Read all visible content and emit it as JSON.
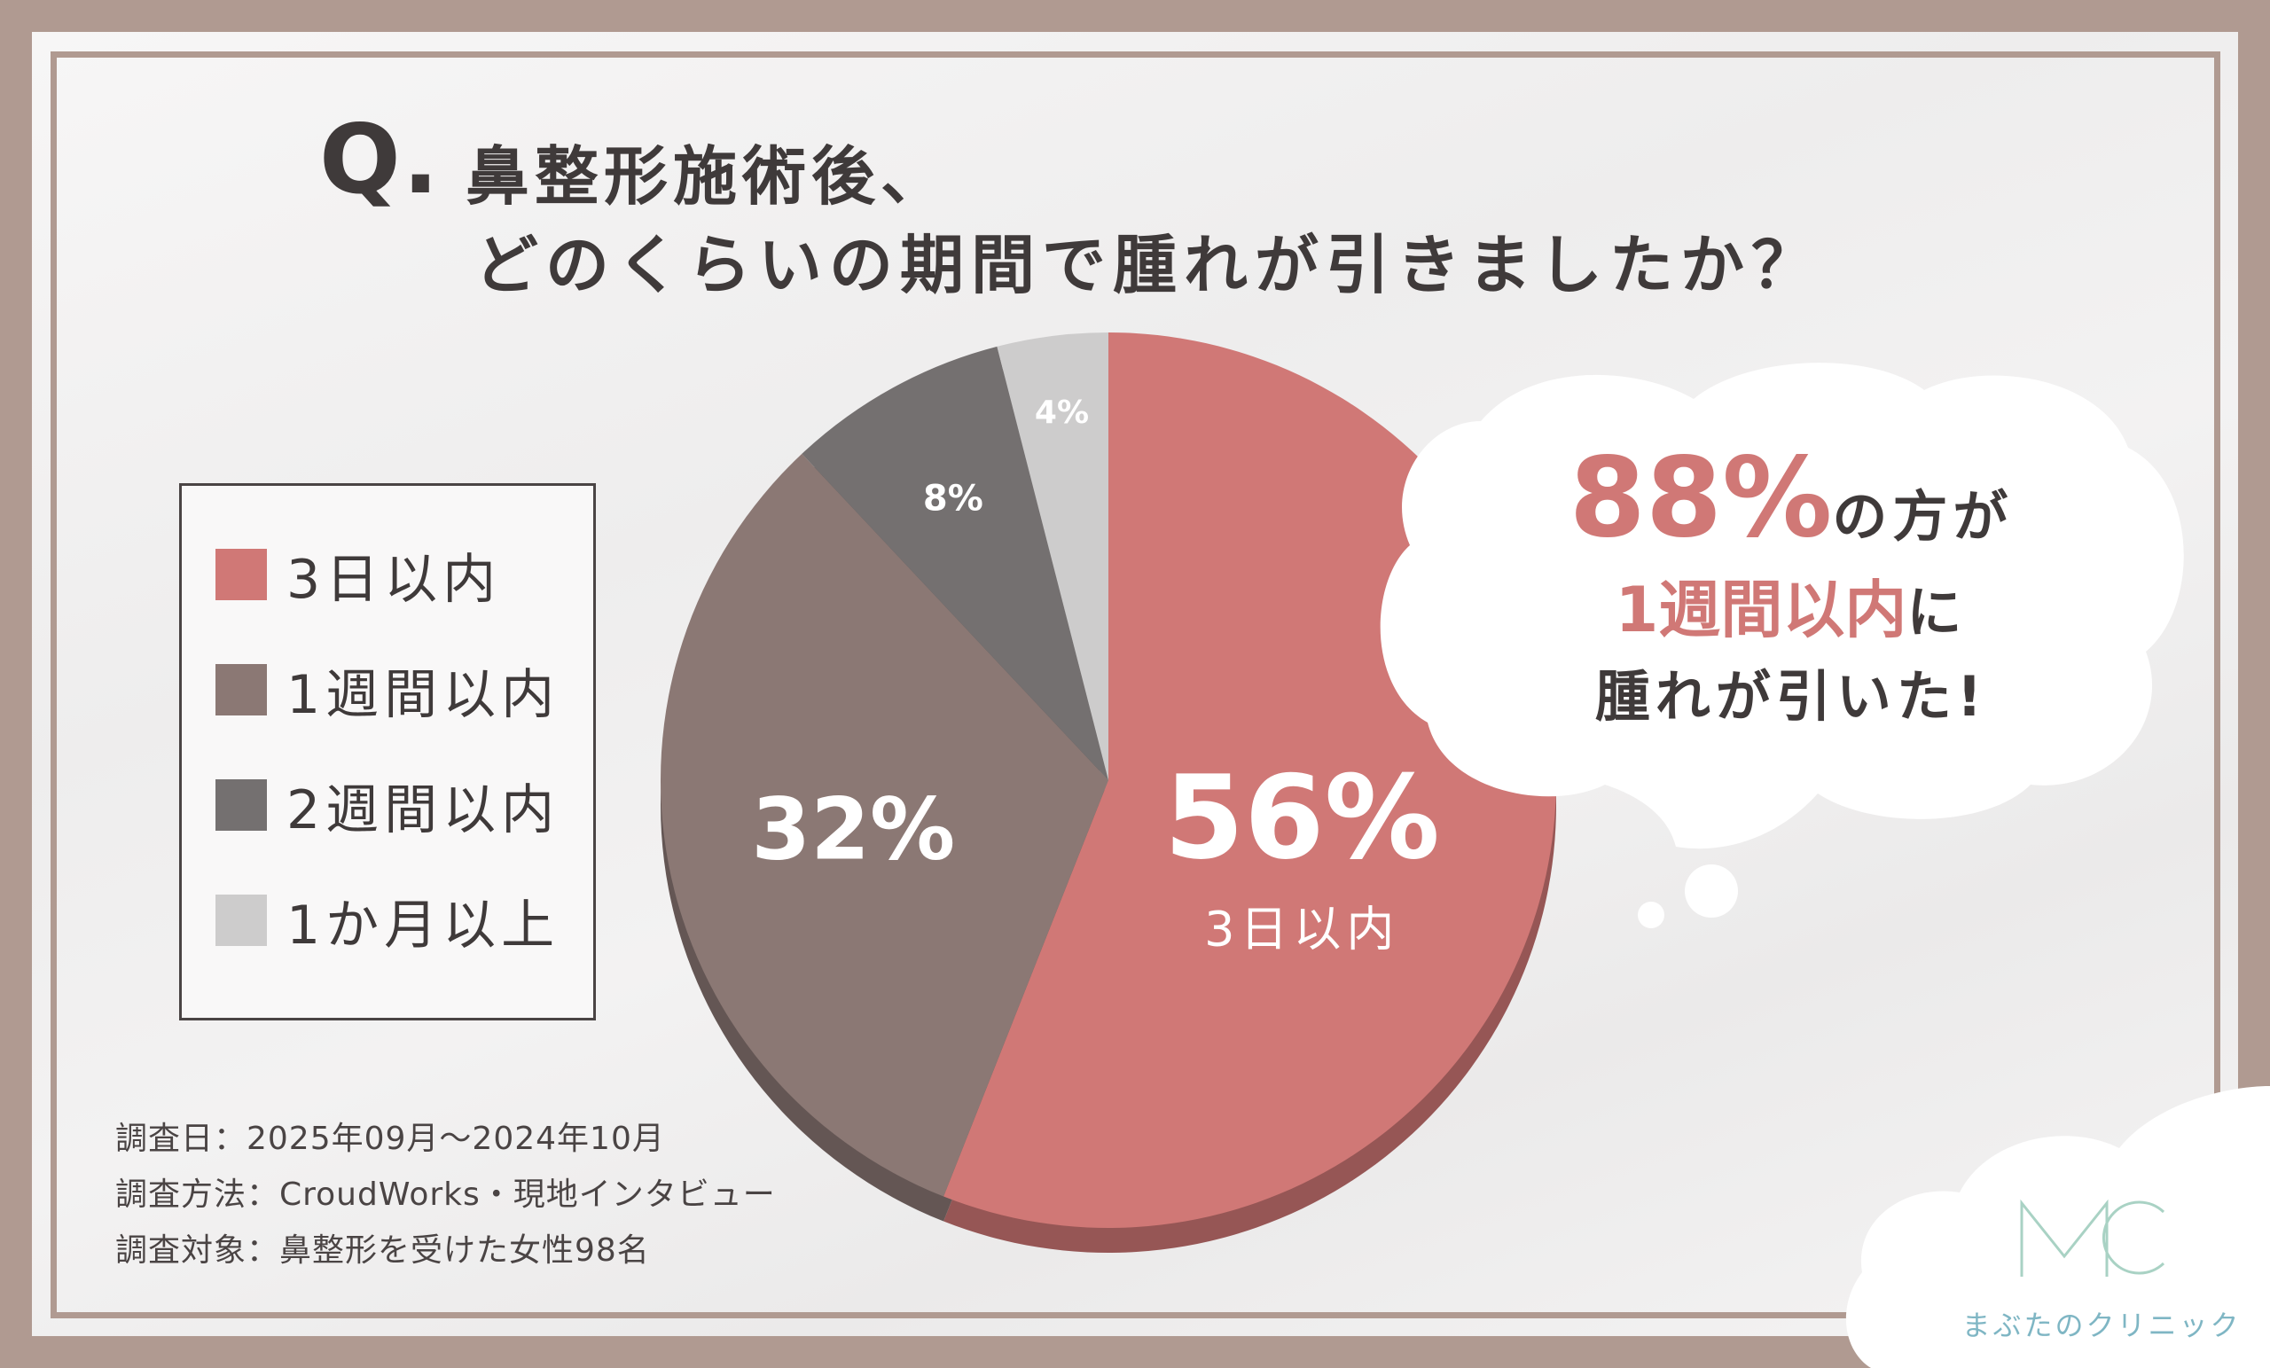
{
  "title": {
    "q": "Q.",
    "line1": "鼻整形施術後、",
    "line2": "どのくらいの期間で腫れが引きましたか？"
  },
  "chart_data": {
    "type": "pie",
    "categories": [
      "3日以内",
      "1週間以内",
      "2週間以内",
      "1か月以上"
    ],
    "values": [
      56,
      32,
      8,
      4
    ],
    "colors": [
      "#d07876",
      "#8b7874",
      "#747070",
      "#cdcccc"
    ],
    "labels": [
      "56%",
      "32%",
      "8%",
      "4%"
    ],
    "sub_label": "3日以内",
    "legend_placement": "left"
  },
  "bubble": {
    "pct": "88%",
    "l1_rest": "の方が",
    "l2_pink": "1週間以内",
    "l2_rest": "に",
    "l3": "腫れが引いた!"
  },
  "footnotes": {
    "date": "調査日：2025年09月〜2024年10月",
    "method": "調査方法：CroudWorks・現地インタビュー",
    "target": "調査対象：鼻整形を受けた女性98名"
  },
  "logo": {
    "mark": "MC",
    "name": "まぶたのクリニック"
  }
}
